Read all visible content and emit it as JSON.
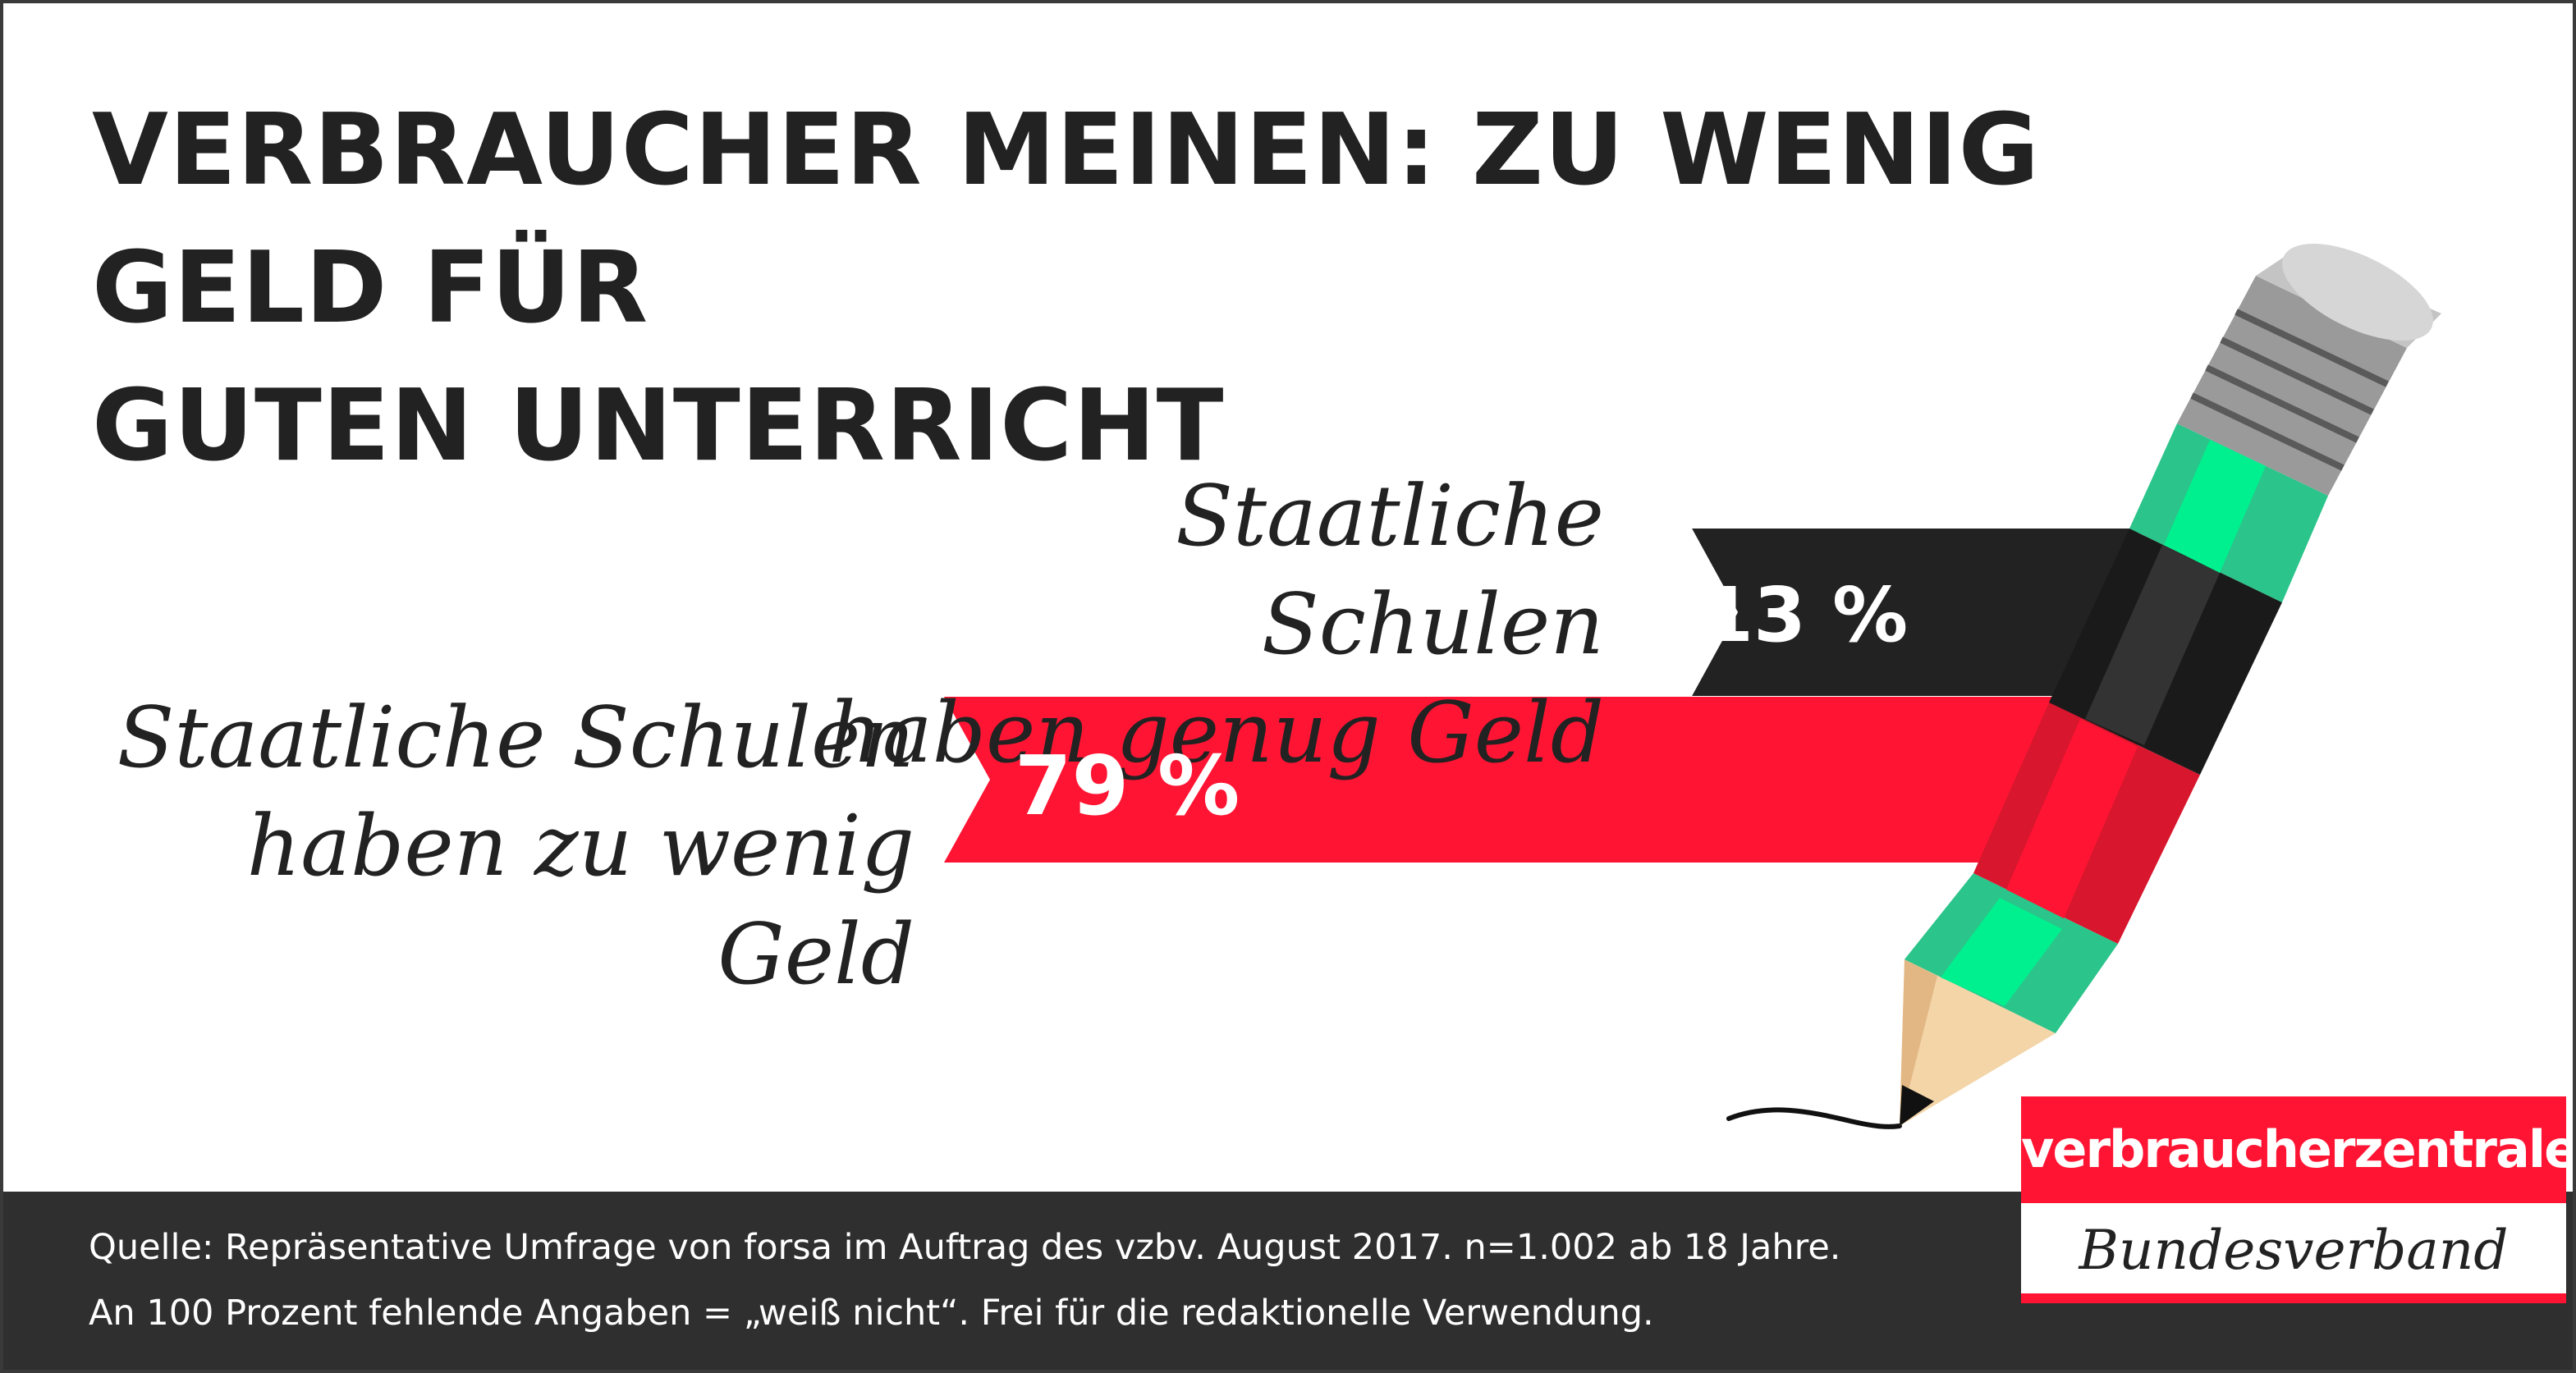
{
  "colors": {
    "red": "#ff1533",
    "dark": "#222222",
    "green": "#00f08f",
    "footer_bg": "#2f2f2f"
  },
  "chart_data": {
    "type": "bar",
    "title": "VERBRAUCHER MEINEN: ZU WENIG GELD FÜR GUTEN UNTERRICHT",
    "categories": [
      [
        "Staatliche Schulen",
        "haben genug Geld"
      ],
      [
        "Staatliche Schulen",
        "haben zu wenig Geld"
      ]
    ],
    "values": [
      13,
      79
    ],
    "value_labels": [
      "13 %",
      "79 %"
    ],
    "unit": "%",
    "bar_colors": [
      "#222222",
      "#ff1533"
    ]
  },
  "title_lines": [
    "VERBRAUCHER MEINEN: ZU WENIG GELD FÜR",
    "GUTEN UNTERRICHT"
  ],
  "source_lines": [
    "Quelle: Repräsentative Umfrage von forsa im Auftrag des vzbv. August 2017. n=1.002 ab 18 Jahre.",
    "An 100 Prozent fehlende Angaben = „weiß nicht“. Frei für die redaktionelle Verwendung."
  ],
  "logo": {
    "top": "verbraucherzentrale",
    "bottom": "Bundesverband"
  },
  "icons": [
    "pencil-icon"
  ]
}
